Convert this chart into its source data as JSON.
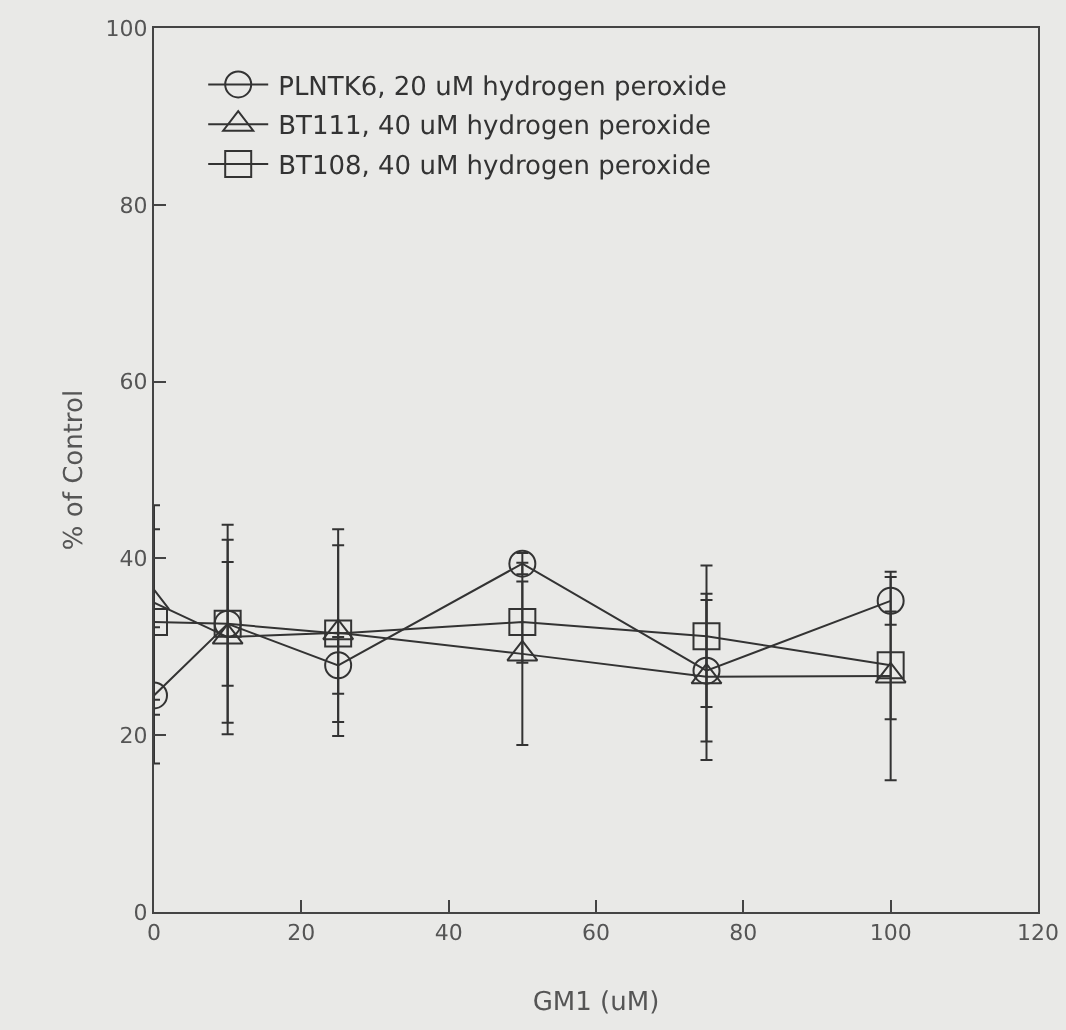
{
  "chart_data": {
    "type": "line",
    "xlabel": "GM1 (uM)",
    "ylabel": "% of Control",
    "x": [
      0,
      10,
      25,
      50,
      75,
      100
    ],
    "series": [
      {
        "name": "PLNTK6, 20 uM hydrogen peroxide",
        "color": "#333333",
        "marker": "circle",
        "values": [
          24.5,
          32.6,
          27.9,
          39.4,
          27.3,
          35.2
        ],
        "errors": [
          7.7,
          7,
          3.2,
          1.2,
          8,
          2.7
        ]
      },
      {
        "name": "BT111, 40 uM hydrogen peroxide",
        "color": "#333333",
        "marker": "triangle",
        "values": [
          35,
          31.1,
          31.6,
          29.2,
          26.6,
          26.7
        ],
        "errors": [
          11,
          11,
          11.7,
          10.3,
          9.4,
          11.8
        ]
      },
      {
        "name": "BT108, 40 uM hydrogen peroxide",
        "color": "#333333",
        "marker": "square",
        "values": [
          32.8,
          32.6,
          31.5,
          32.8,
          31.2,
          27.9
        ],
        "errors": [
          10.5,
          11.2,
          10,
          4.6,
          8,
          6.1
        ]
      }
    ],
    "xlim": [
      0,
      120
    ],
    "xticks": [
      0,
      20,
      40,
      60,
      80,
      100,
      120
    ],
    "ylim": [
      0,
      100
    ],
    "yticks": [
      0,
      20,
      40,
      60,
      80,
      100
    ],
    "grid": false,
    "legend": "top left"
  }
}
